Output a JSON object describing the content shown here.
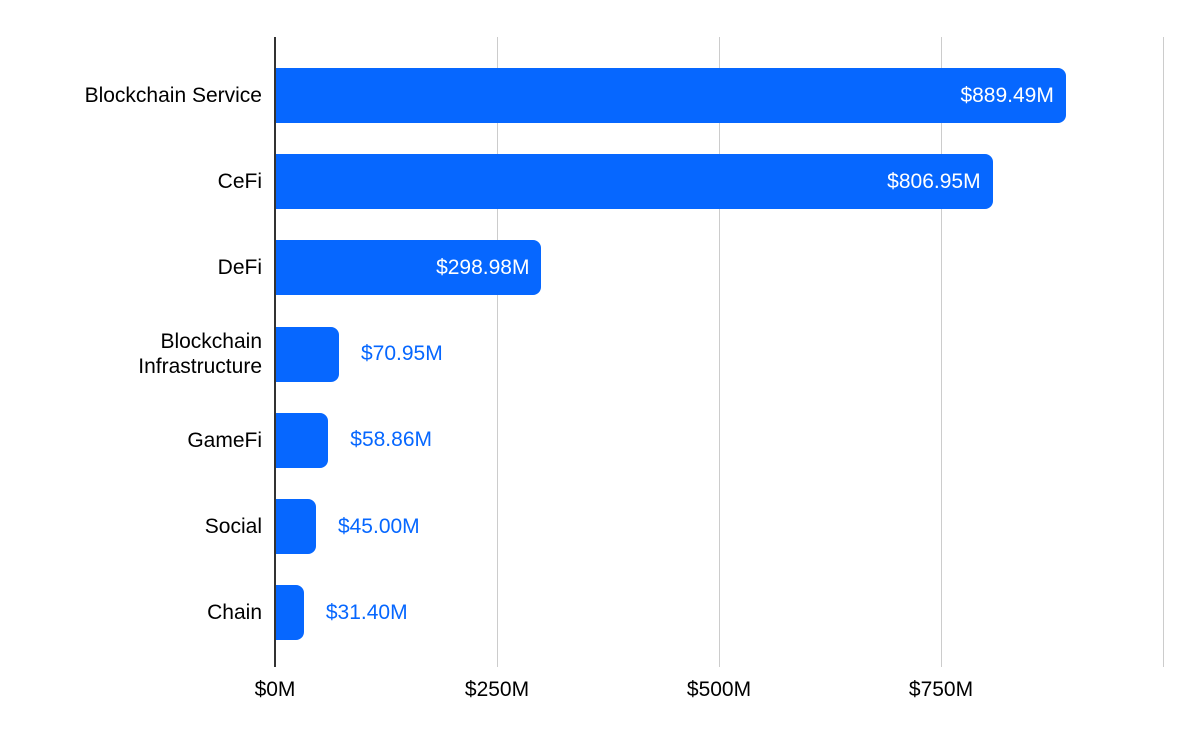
{
  "colors": {
    "bar": "#0667ff",
    "value_label_inside": "#ffffff",
    "value_label_outside": "#0667ff",
    "gridline": "#cccccc",
    "axis_line": "#333333",
    "text": "#000000",
    "background": "#ffffff"
  },
  "chart_data": {
    "type": "bar",
    "orientation": "horizontal",
    "title": "",
    "xlabel": "",
    "ylabel": "",
    "xlim": [
      0,
      1024
    ],
    "grid": true,
    "legend": false,
    "categories": [
      "Blockchain Service",
      "CeFi",
      "DeFi",
      "Blockchain Infrastructure",
      "GameFi",
      "Social",
      "Chain"
    ],
    "values": [
      889.49,
      806.95,
      298.98,
      70.95,
      58.86,
      45.0,
      31.4
    ],
    "value_labels": [
      "$889.49M",
      "$806.95M",
      "$298.98M",
      "$70.95M",
      "$58.86M",
      "$45.00M",
      "$31.40M"
    ],
    "value_label_placement": [
      "inside",
      "inside",
      "inside",
      "outside",
      "outside",
      "outside",
      "outside"
    ],
    "x_ticks": [
      {
        "value": 0,
        "label": "$0M"
      },
      {
        "value": 250,
        "label": "$250M"
      },
      {
        "value": 500,
        "label": "$500M"
      },
      {
        "value": 750,
        "label": "$750M"
      },
      {
        "value": 1000,
        "label": ""
      }
    ]
  }
}
